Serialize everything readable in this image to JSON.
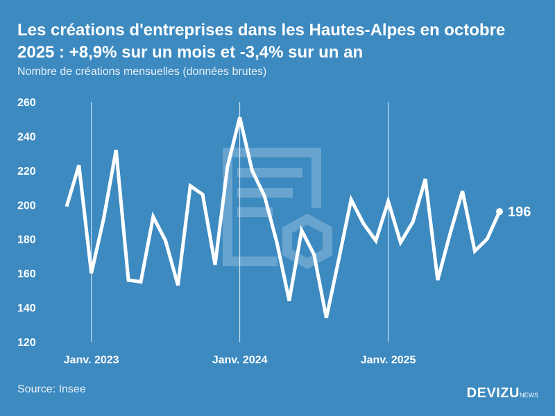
{
  "title": "Les créations d'entreprises dans les Hautes-Alpes en octobre 2025 : +8,9% sur un mois et -3,4% sur un an",
  "subtitle": "Nombre de créations mensuelles (données brutes)",
  "source": "Source: Insee",
  "logo": {
    "main": "DEVIZU",
    "suffix": "NEWS"
  },
  "colors": {
    "background": "#3d8ac0",
    "line": "#ffffff"
  },
  "chart_data": {
    "type": "line",
    "title": "",
    "xlabel": "",
    "ylabel": "",
    "ylim": [
      120,
      260
    ],
    "yticks": [
      120,
      140,
      160,
      180,
      200,
      220,
      240,
      260
    ],
    "xtick_labels": [
      {
        "label": "Janv. 2023",
        "index": 2
      },
      {
        "label": "Janv. 2024",
        "index": 14
      },
      {
        "label": "Janv. 2025",
        "index": 26
      }
    ],
    "x": [
      "2022-11",
      "2022-12",
      "2023-01",
      "2023-02",
      "2023-03",
      "2023-04",
      "2023-05",
      "2023-06",
      "2023-07",
      "2023-08",
      "2023-09",
      "2023-10",
      "2023-11",
      "2023-12",
      "2024-01",
      "2024-02",
      "2024-03",
      "2024-04",
      "2024-05",
      "2024-06",
      "2024-07",
      "2024-08",
      "2024-09",
      "2024-10",
      "2024-11",
      "2024-12",
      "2025-01",
      "2025-02",
      "2025-03",
      "2025-04",
      "2025-05",
      "2025-06",
      "2025-07",
      "2025-08",
      "2025-09",
      "2025-10"
    ],
    "values": [
      199,
      223,
      160,
      192,
      232,
      156,
      155,
      193,
      179,
      153,
      211,
      206,
      165,
      222,
      251,
      220,
      205,
      178,
      144,
      185,
      171,
      134,
      168,
      203,
      189,
      179,
      202,
      178,
      190,
      215,
      156,
      183,
      208,
      173,
      180,
      196
    ],
    "last_label": "196",
    "grid": "vertical lines at January"
  }
}
